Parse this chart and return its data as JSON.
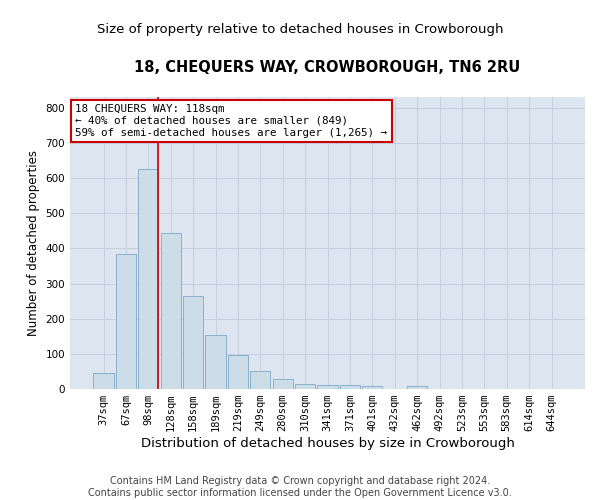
{
  "title": "18, CHEQUERS WAY, CROWBOROUGH, TN6 2RU",
  "subtitle": "Size of property relative to detached houses in Crowborough",
  "xlabel": "Distribution of detached houses by size in Crowborough",
  "ylabel": "Number of detached properties",
  "categories": [
    "37sqm",
    "67sqm",
    "98sqm",
    "128sqm",
    "158sqm",
    "189sqm",
    "219sqm",
    "249sqm",
    "280sqm",
    "310sqm",
    "341sqm",
    "371sqm",
    "401sqm",
    "432sqm",
    "462sqm",
    "492sqm",
    "523sqm",
    "553sqm",
    "583sqm",
    "614sqm",
    "644sqm"
  ],
  "values": [
    45,
    385,
    625,
    443,
    265,
    153,
    96,
    52,
    28,
    15,
    12,
    11,
    10,
    0,
    8,
    0,
    0,
    0,
    0,
    0,
    0
  ],
  "bar_color": "#ccdde8",
  "bar_edge_color": "#8ab0cc",
  "grid_color": "#c5cfe0",
  "background_color": "#dde6f0",
  "vline_bin_index": 2,
  "annotation_text": "18 CHEQUERS WAY: 118sqm\n← 40% of detached houses are smaller (849)\n59% of semi-detached houses are larger (1,265) →",
  "annotation_box_color": "#ffffff",
  "annotation_border_color": "#cc0000",
  "vline_color": "#cc0000",
  "ylim": [
    0,
    830
  ],
  "yticks": [
    0,
    100,
    200,
    300,
    400,
    500,
    600,
    700,
    800
  ],
  "footer_line1": "Contains HM Land Registry data © Crown copyright and database right 2024.",
  "footer_line2": "Contains public sector information licensed under the Open Government Licence v3.0.",
  "title_fontsize": 10.5,
  "subtitle_fontsize": 9.5,
  "xlabel_fontsize": 9.5,
  "ylabel_fontsize": 8.5,
  "tick_fontsize": 7.5,
  "footer_fontsize": 7.0,
  "annotation_fontsize": 7.8
}
